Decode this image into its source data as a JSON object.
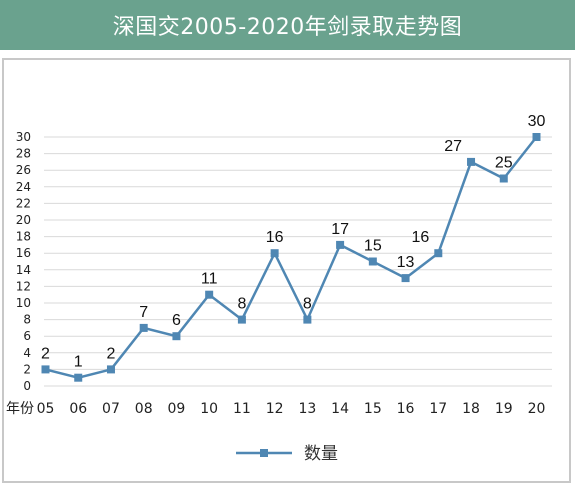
{
  "title": "深国交2005-2020年剑录取走势图",
  "colors": {
    "title_bg": "#6aa28e",
    "series": "#4f87b3",
    "grid": "#d9d9d9"
  },
  "chart_data": {
    "type": "line",
    "title": "深国交2005-2020年剑录取走势图",
    "xlabel": "年份",
    "ylabel": "",
    "categories": [
      "05",
      "06",
      "07",
      "08",
      "09",
      "10",
      "11",
      "12",
      "13",
      "14",
      "15",
      "16",
      "17",
      "18",
      "19",
      "20"
    ],
    "series": [
      {
        "name": "数量",
        "values": [
          2,
          1,
          2,
          7,
          6,
          11,
          8,
          16,
          8,
          17,
          15,
          13,
          16,
          27,
          25,
          30
        ]
      }
    ],
    "ylim": [
      0,
      30
    ],
    "yticks": [
      "0",
      "2",
      "4",
      "6",
      "8",
      "10",
      "12",
      "14",
      "16",
      "18",
      "20",
      "22",
      "24",
      "26",
      "28",
      "30"
    ],
    "grid": true,
    "legend": "bottom-center",
    "marker": "square"
  }
}
